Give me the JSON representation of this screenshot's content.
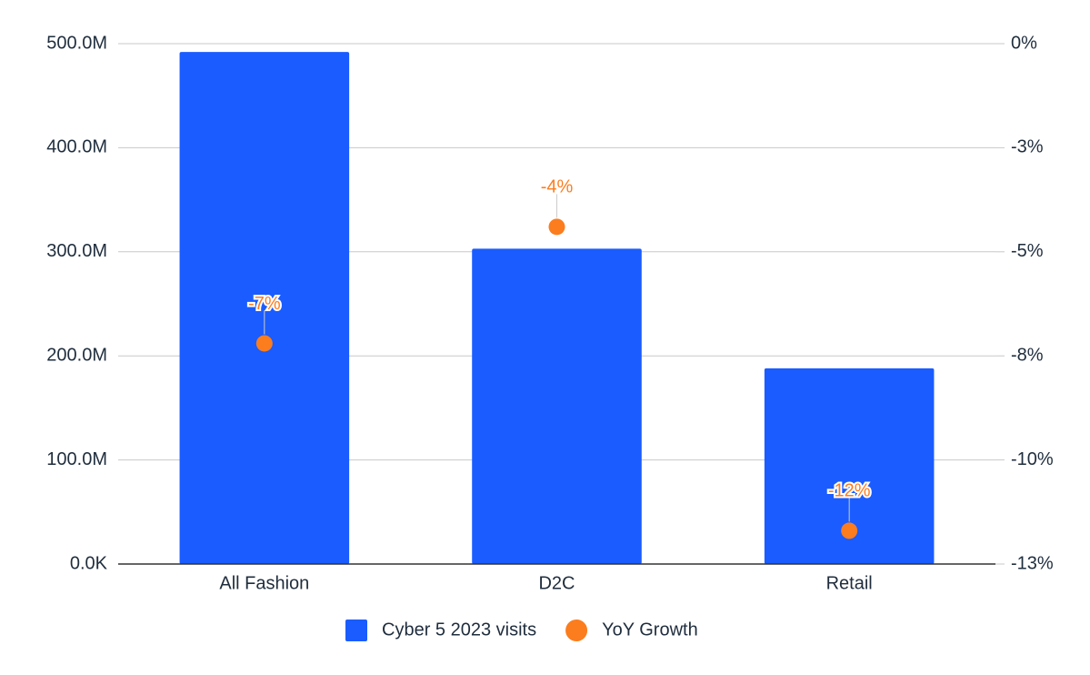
{
  "chart_data": {
    "type": "bar",
    "categories": [
      "All Fashion",
      "D2C",
      "Retail"
    ],
    "series": [
      {
        "name": "Cyber 5 2023 visits",
        "type": "bar",
        "color": "#1a5cff",
        "values": [
          492000000,
          303000000,
          188000000
        ]
      },
      {
        "name": "YoY Growth",
        "type": "scatter",
        "axis": "y2",
        "color": "#fb7d1e",
        "values": [
          -7.2,
          -4.4,
          -11.7
        ],
        "value_labels": [
          "-7%",
          "-4%",
          "-12%"
        ]
      }
    ],
    "ylim": [
      0,
      500000000
    ],
    "yticks": [
      {
        "value": 0,
        "label": "0.0K"
      },
      {
        "value": 100000000,
        "label": "100.0M"
      },
      {
        "value": 200000000,
        "label": "200.0M"
      },
      {
        "value": 300000000,
        "label": "300.0M"
      },
      {
        "value": 400000000,
        "label": "400.0M"
      },
      {
        "value": 500000000,
        "label": "500.0M"
      }
    ],
    "y2lim": [
      -12.5,
      0
    ],
    "y2ticks": [
      {
        "value": 0,
        "label": "0%"
      },
      {
        "value": -2.5,
        "label": "-3%"
      },
      {
        "value": -5,
        "label": "-5%"
      },
      {
        "value": -7.5,
        "label": "-8%"
      },
      {
        "value": -10,
        "label": "-10%"
      },
      {
        "value": -12.5,
        "label": "-13%"
      }
    ],
    "grid": true,
    "legend": "bottom"
  }
}
